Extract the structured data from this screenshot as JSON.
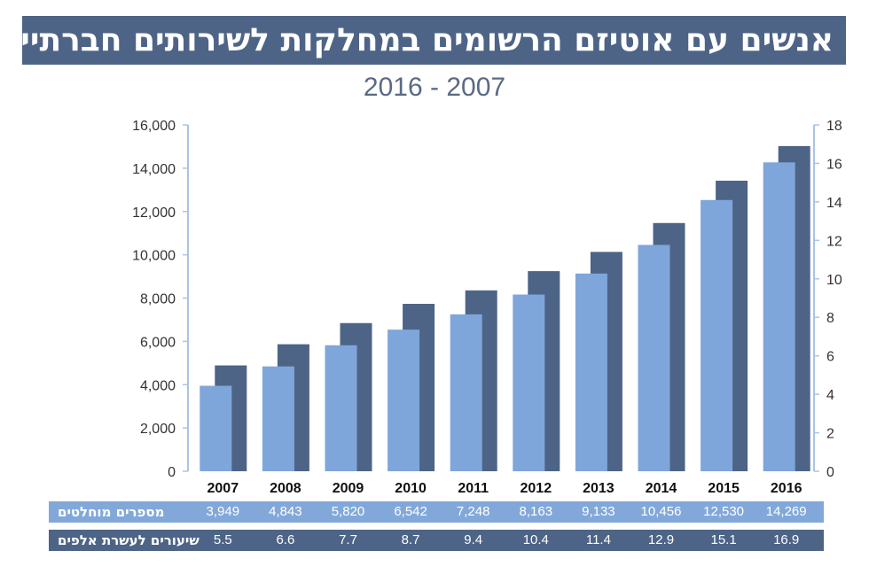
{
  "title": "אנשים עם אוטיזם הרשומים במחלקות לשירותים חברתיים",
  "subtitle": "2016 - 2007",
  "colors": {
    "count_bar": "#7ea6da",
    "rate_bar": "#4d6487",
    "axis": "#a9c4e4",
    "title_bg": "#4d6487"
  },
  "table": {
    "count_label": "מספרים מוחלטים",
    "rate_label": "שיעורים לעשרת אלפים",
    "count_text": [
      "3,949",
      "4,843",
      "5,820",
      "6,542",
      "7,248",
      "8,163",
      "9,133",
      "10,456",
      "12,530",
      "14,269"
    ],
    "rate_text": [
      "5.5",
      "6.6",
      "7.7",
      "8.7",
      "9.4",
      "10.4",
      "11.4",
      "12.9",
      "15.1",
      "16.9"
    ]
  },
  "chart_data": {
    "type": "bar",
    "title": "אנשים עם אוטיזם הרשומים במחלקות לשירותים חברתיים",
    "subtitle": "2016 - 2007",
    "categories": [
      "2007",
      "2008",
      "2009",
      "2010",
      "2011",
      "2012",
      "2013",
      "2014",
      "2015",
      "2016"
    ],
    "series": [
      {
        "name": "מספרים מוחלטים",
        "axis": "left",
        "values": [
          3949,
          4843,
          5820,
          6542,
          7248,
          8163,
          9133,
          10456,
          12530,
          14269
        ]
      },
      {
        "name": "שיעורים לעשרת אלפים",
        "axis": "right",
        "values": [
          5.5,
          6.6,
          7.7,
          8.7,
          9.4,
          10.4,
          11.4,
          12.9,
          15.1,
          16.9
        ]
      }
    ],
    "y_left": {
      "min": 0,
      "max": 16000,
      "ticks": [
        "0",
        "2,000",
        "4,000",
        "6,000",
        "8,000",
        "10,000",
        "12,000",
        "14,000",
        "16,000"
      ]
    },
    "y_right": {
      "min": 0,
      "max": 18,
      "ticks": [
        "0",
        "2",
        "4",
        "6",
        "8",
        "10",
        "12",
        "14",
        "16",
        "18"
      ]
    },
    "grid": false
  }
}
